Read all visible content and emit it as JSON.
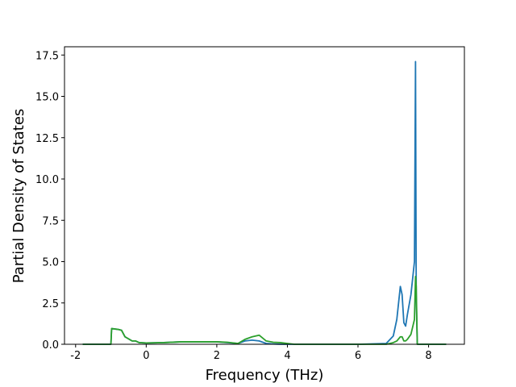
{
  "chart_data": {
    "type": "line",
    "xlabel": "Frequency (THz)",
    "ylabel": "Partial Density of States",
    "x": [
      -1.8,
      -1.0,
      -0.98,
      -0.8,
      -0.7,
      -0.6,
      -0.4,
      -0.3,
      -0.2,
      0,
      0.5,
      1,
      2,
      2.3,
      2.6,
      2.8,
      3.0,
      3.2,
      3.4,
      3.6,
      3.8,
      4.0,
      4.2,
      5,
      6,
      6.8,
      7.0,
      7.1,
      7.2,
      7.25,
      7.3,
      7.35,
      7.4,
      7.5,
      7.6,
      7.63,
      7.65,
      7.68,
      8.5
    ],
    "series": [
      {
        "color": "#1f77b4",
        "values": [
          0,
          0,
          0.95,
          0.9,
          0.85,
          0.45,
          0.2,
          0.2,
          0.1,
          0.08,
          0.1,
          0.15,
          0.15,
          0.1,
          0.05,
          0.2,
          0.25,
          0.2,
          0.05,
          0.02,
          0,
          0,
          0,
          0,
          0,
          0.05,
          0.5,
          1.5,
          3.5,
          3.0,
          1.3,
          1.1,
          1.8,
          3.0,
          5.0,
          17.1,
          3.0,
          0,
          0
        ]
      },
      {
        "color": "#2ca02c",
        "values": [
          0,
          0,
          0.95,
          0.9,
          0.85,
          0.45,
          0.2,
          0.2,
          0.1,
          0.08,
          0.1,
          0.15,
          0.15,
          0.12,
          0.05,
          0.3,
          0.45,
          0.55,
          0.2,
          0.12,
          0.1,
          0.05,
          0,
          0,
          0,
          0,
          0.1,
          0.2,
          0.45,
          0.45,
          0.2,
          0.2,
          0.3,
          0.6,
          1.5,
          4.1,
          3.5,
          0,
          0
        ]
      }
    ],
    "xlim": [
      -2.315,
      9.015
    ],
    "ylim": [
      0,
      18.0
    ],
    "xticks": [
      -2,
      0,
      2,
      4,
      6,
      8
    ],
    "yticks": [
      {
        "value": 0,
        "label": "0.0"
      },
      {
        "value": 2.5,
        "label": "2.5"
      },
      {
        "value": 5,
        "label": "5.0"
      },
      {
        "value": 7.5,
        "label": "7.5"
      },
      {
        "value": 10,
        "label": "10.0"
      },
      {
        "value": 12.5,
        "label": "12.5"
      },
      {
        "value": 15,
        "label": "15.0"
      },
      {
        "value": 17.5,
        "label": "17.5"
      }
    ],
    "grid": false
  }
}
